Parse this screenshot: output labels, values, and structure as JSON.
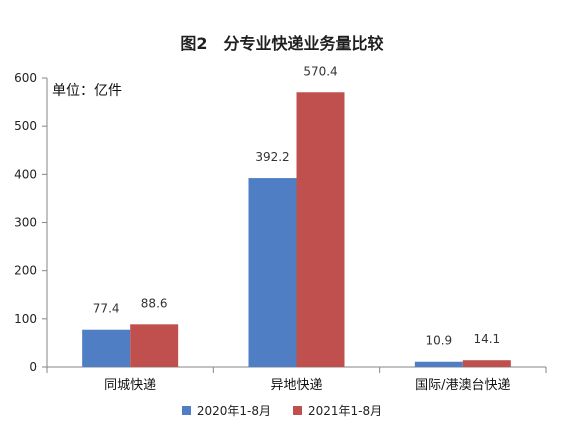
{
  "chart_data": {
    "type": "bar",
    "title": "图2　分专业快递业务量比较",
    "unit_label": "单位：亿件",
    "categories": [
      "同城快递",
      "异地快递",
      "国际/港澳台快递"
    ],
    "series": [
      {
        "name": "2020年1-8月",
        "values": [
          77.4,
          392.2,
          10.9
        ],
        "color": "#4f7ec4"
      },
      {
        "name": "2021年1-8月",
        "values": [
          88.6,
          570.4,
          14.1
        ],
        "color": "#c0504d"
      }
    ],
    "data_labels": [
      [
        "77.4",
        "392.2",
        "10.9"
      ],
      [
        "88.6",
        "570.4",
        "14.1"
      ]
    ],
    "ylim": [
      0,
      600
    ],
    "yticks": [
      "0",
      "100",
      "200",
      "300",
      "400",
      "500",
      "600"
    ],
    "grid": false,
    "legend_position": "bottom"
  }
}
